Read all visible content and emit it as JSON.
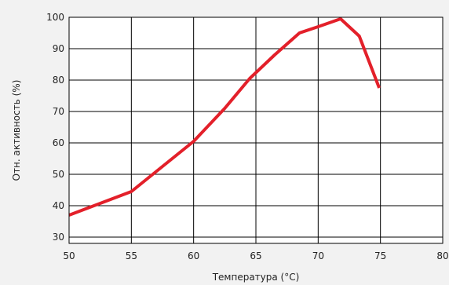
{
  "chart_data": {
    "type": "line",
    "title": "",
    "xlabel": "Температура (°C)",
    "ylabel": "Отн. активность (%)",
    "xlim": [
      50,
      80
    ],
    "ylim": [
      28,
      100
    ],
    "x_ticks": [
      50,
      55,
      60,
      65,
      70,
      75,
      80
    ],
    "y_ticks": [
      30,
      40,
      50,
      60,
      70,
      80,
      90,
      100
    ],
    "grid": true,
    "series": [
      {
        "color": "#e3202a",
        "x": [
          50,
          55,
          60,
          62.5,
          64.5,
          66.5,
          68.5,
          70,
          71.8,
          73.3,
          74.9
        ],
        "y": [
          37,
          44.5,
          60.5,
          71,
          80.5,
          88,
          95,
          97,
          99.5,
          94,
          77.5
        ]
      }
    ]
  }
}
